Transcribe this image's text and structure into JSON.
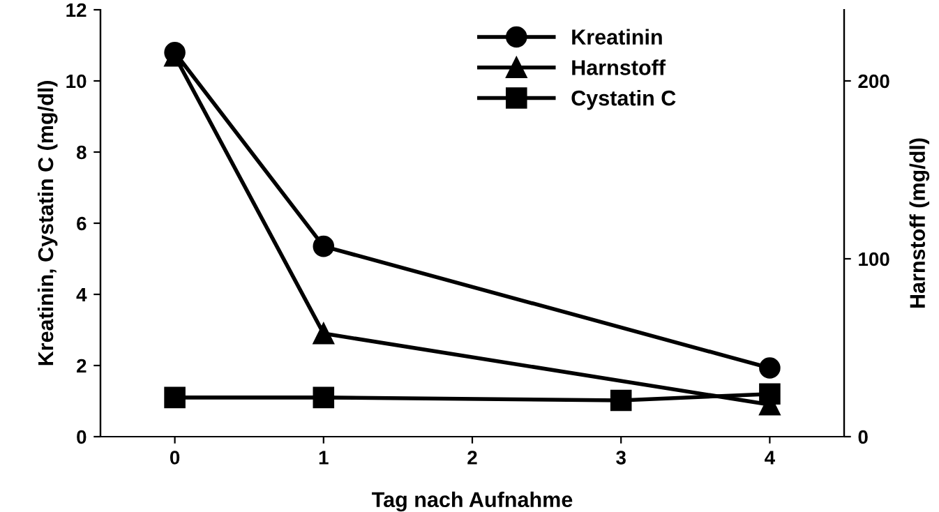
{
  "chart_data": {
    "type": "line",
    "xlabel": "Tag nach Aufnahme",
    "ylabel": "Kreatinin, Cystatin C (mg/dl)",
    "y2label": "Harnstoff (mg/dl)",
    "xlim": [
      -0.5,
      4.5
    ],
    "xticks": [
      0,
      1,
      2,
      3,
      4
    ],
    "ylim": [
      0,
      12
    ],
    "yticks": [
      0,
      2,
      4,
      6,
      8,
      10,
      12
    ],
    "y2lim": [
      0,
      240
    ],
    "y2ticks": [
      0,
      100,
      200
    ],
    "grid": false,
    "legend": "top right",
    "line_style": "solid",
    "series": [
      {
        "name": "Kreatinin",
        "color": "#000000",
        "marker": "circle",
        "x": [
          0,
          1,
          4
        ],
        "values": [
          10.8,
          5.35,
          1.93
        ]
      },
      {
        "name": "Harnstoff",
        "color": "#000000",
        "marker": "triangle",
        "axis": "y2",
        "x": [
          0,
          1,
          4
        ],
        "values": [
          214,
          58,
          18
        ]
      },
      {
        "name": "Cystatin C",
        "color": "#000000",
        "marker": "square",
        "x": [
          0,
          1,
          3,
          4
        ],
        "values": [
          1.1,
          1.1,
          1.02,
          1.2
        ]
      }
    ]
  }
}
